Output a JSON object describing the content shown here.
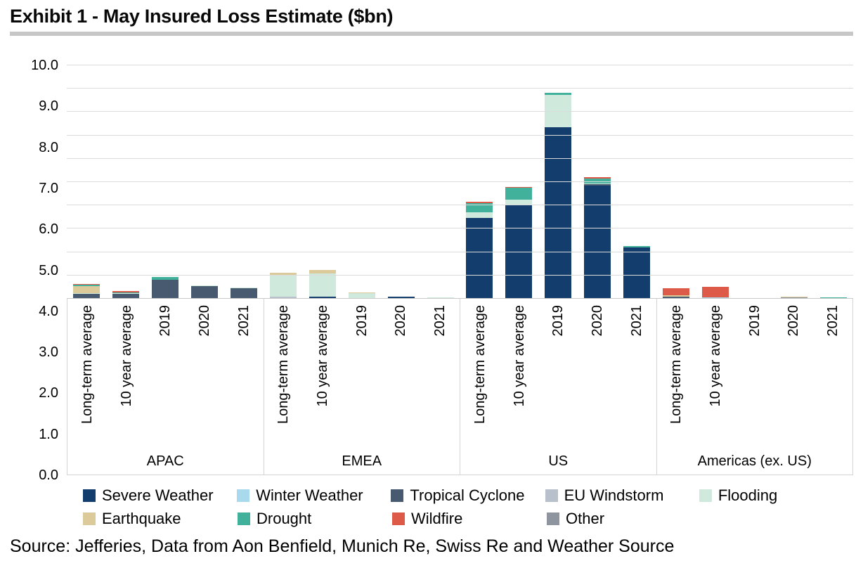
{
  "title": "Exhibit 1 - May Insured Loss Estimate ($bn)",
  "source": "Source: Jefferies, Data from Aon Benfield, Munich Re, Swiss Re and Weather Source",
  "legend": {
    "items": [
      {
        "label": "Severe Weather",
        "color": "#123d6c"
      },
      {
        "label": "Winter Weather",
        "color": "#a9d9ec"
      },
      {
        "label": "Tropical Cyclone",
        "color": "#475a70"
      },
      {
        "label": "EU Windstorm",
        "color": "#b7c0cb"
      },
      {
        "label": "Flooding",
        "color": "#cfe9dc"
      },
      {
        "label": "Earthquake",
        "color": "#dcca9b"
      },
      {
        "label": "Drought",
        "color": "#41b19b"
      },
      {
        "label": "Wildfire",
        "color": "#dc5a47"
      },
      {
        "label": "Other",
        "color": "#8e959e"
      }
    ]
  },
  "chart_data": {
    "type": "bar",
    "stacked": true,
    "title": "May Insured Loss Estimate ($bn)",
    "xlabel": "",
    "ylabel": "$bn",
    "ylim": [
      0,
      10
    ],
    "grid": true,
    "legend_position": "bottom",
    "y_tick_labels": [
      "0.0",
      "1.0",
      "2.0",
      "3.0",
      "4.0",
      "5.0",
      "6.0",
      "7.0",
      "8.0",
      "9.0",
      "10.0"
    ],
    "bar_labels": [
      "Long-term average",
      "10 year average",
      "2019",
      "2020",
      "2021"
    ],
    "series_names": [
      "Severe Weather",
      "Winter Weather",
      "Tropical Cyclone",
      "EU Windstorm",
      "Flooding",
      "Earthquake",
      "Drought",
      "Wildfire",
      "Other"
    ],
    "groups": [
      {
        "label": "APAC",
        "bars": [
          {
            "label": "Long-term average",
            "total": 0.63,
            "segments": [
              [
                "Tropical Cyclone",
                0.2
              ],
              [
                "Flooding",
                0.05
              ],
              [
                "Earthquake",
                0.3
              ],
              [
                "Drought",
                0.05
              ],
              [
                "Wildfire",
                0.03
              ]
            ]
          },
          {
            "label": "10 year average",
            "total": 0.32,
            "segments": [
              [
                "Tropical Cyclone",
                0.2
              ],
              [
                "Flooding",
                0.04
              ],
              [
                "Drought",
                0.04
              ],
              [
                "Wildfire",
                0.04
              ]
            ]
          },
          {
            "label": "2019",
            "total": 0.94,
            "segments": [
              [
                "Tropical Cyclone",
                0.82
              ],
              [
                "Drought",
                0.12
              ]
            ]
          },
          {
            "label": "2020",
            "total": 0.58,
            "segments": [
              [
                "Tropical Cyclone",
                0.55
              ],
              [
                "Flooding",
                0.03
              ]
            ]
          },
          {
            "label": "2021",
            "total": 0.49,
            "segments": [
              [
                "Tropical Cyclone",
                0.45
              ],
              [
                "Flooding",
                0.04
              ]
            ]
          }
        ]
      },
      {
        "label": "EMEA",
        "bars": [
          {
            "label": "Long-term average",
            "total": 1.13,
            "segments": [
              [
                "Severe Weather",
                0.04
              ],
              [
                "EU Windstorm",
                0.06
              ],
              [
                "Flooding",
                0.9
              ],
              [
                "Earthquake",
                0.13
              ]
            ]
          },
          {
            "label": "10 year average",
            "total": 1.25,
            "segments": [
              [
                "Severe Weather",
                0.08
              ],
              [
                "Flooding",
                1.0
              ],
              [
                "Earthquake",
                0.15
              ],
              [
                "Other",
                0.02
              ]
            ]
          },
          {
            "label": "2019",
            "total": 0.26,
            "segments": [
              [
                "Flooding",
                0.24
              ],
              [
                "Earthquake",
                0.02
              ]
            ]
          },
          {
            "label": "2020",
            "total": 0.08,
            "segments": [
              [
                "Severe Weather",
                0.08
              ]
            ]
          },
          {
            "label": "2021",
            "total": 0.05,
            "segments": [
              [
                "Flooding",
                0.05
              ]
            ]
          }
        ]
      },
      {
        "label": "US",
        "bars": [
          {
            "label": "Long-term average",
            "total": 4.15,
            "segments": [
              [
                "Severe Weather",
                3.45
              ],
              [
                "Flooding",
                0.25
              ],
              [
                "Drought",
                0.4
              ],
              [
                "Wildfire",
                0.05
              ]
            ]
          },
          {
            "label": "10 year average",
            "total": 4.79,
            "segments": [
              [
                "Severe Weather",
                4.0
              ],
              [
                "Flooding",
                0.25
              ],
              [
                "Drought",
                0.5
              ],
              [
                "Wildfire",
                0.04
              ]
            ]
          },
          {
            "label": "2019",
            "total": 8.83,
            "segments": [
              [
                "Severe Weather",
                7.35
              ],
              [
                "Flooding",
                1.4
              ],
              [
                "Drought",
                0.08
              ]
            ]
          },
          {
            "label": "2020",
            "total": 5.2,
            "segments": [
              [
                "Severe Weather",
                4.85
              ],
              [
                "Tropical Cyclone",
                0.07
              ],
              [
                "Flooding",
                0.03
              ],
              [
                "Drought",
                0.2
              ],
              [
                "Wildfire",
                0.05
              ]
            ]
          },
          {
            "label": "2021",
            "total": 2.25,
            "segments": [
              [
                "Severe Weather",
                2.2
              ],
              [
                "Drought",
                0.05
              ]
            ]
          }
        ]
      },
      {
        "label": "Americas (ex. US)",
        "bars": [
          {
            "label": "Long-term average",
            "total": 0.44,
            "segments": [
              [
                "Tropical Cyclone",
                0.1
              ],
              [
                "Earthquake",
                0.04
              ],
              [
                "Wildfire",
                0.3
              ]
            ]
          },
          {
            "label": "10 year average",
            "total": 0.5,
            "segments": [
              [
                "Severe Weather",
                0.02
              ],
              [
                "Winter Weather",
                0.05
              ],
              [
                "Wildfire",
                0.43
              ]
            ]
          },
          {
            "label": "2019",
            "total": 0.0,
            "segments": []
          },
          {
            "label": "2020",
            "total": 0.1,
            "segments": [
              [
                "Other",
                0.07
              ],
              [
                "Earthquake",
                0.03
              ]
            ]
          },
          {
            "label": "2021",
            "total": 0.05,
            "segments": [
              [
                "Flooding",
                0.04
              ],
              [
                "Drought",
                0.01
              ]
            ]
          }
        ]
      }
    ]
  }
}
